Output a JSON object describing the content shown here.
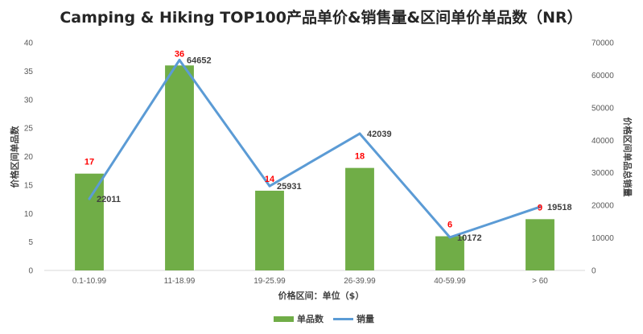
{
  "chart_data": {
    "type": "bar",
    "title": "Camping & Hiking TOP100产品单价&销售量&区间单价单品数（NR）",
    "xlabel": "价格区间：单位（$）",
    "ylabel": "价格区间单品数",
    "y2label": "价格区间单品总销量",
    "categories": [
      "0.1-10.99",
      "11-18.99",
      "19-25.99",
      "26-39.99",
      "40-59.99",
      "> 60"
    ],
    "series": [
      {
        "name": "单品数",
        "type": "bar",
        "axis": "left",
        "color": "#70AD47",
        "label_color": "#FF0000",
        "values": [
          17,
          36,
          14,
          18,
          6,
          9
        ]
      },
      {
        "name": "销量",
        "type": "line",
        "axis": "right",
        "color": "#5B9BD5",
        "label_color": "#404040",
        "values": [
          22011,
          64652,
          25931,
          42039,
          10172,
          19518
        ]
      }
    ],
    "ylim": [
      0,
      40
    ],
    "yticks": [
      0,
      5,
      10,
      15,
      20,
      25,
      30,
      35,
      40
    ],
    "y2lim": [
      0,
      70000
    ],
    "y2ticks": [
      0,
      10000,
      20000,
      30000,
      40000,
      50000,
      60000,
      70000
    ],
    "grid": false,
    "legend_position": "bottom"
  }
}
